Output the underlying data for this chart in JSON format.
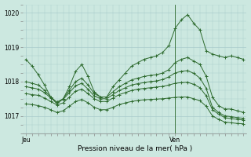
{
  "bg_color": "#cce8e0",
  "grid_color": "#aacccc",
  "line_color": "#2d6a2d",
  "ylabel": "Pression niveau de la mer( hPa )",
  "ylim": [
    1016.5,
    1020.25
  ],
  "yticks": [
    1017,
    1018,
    1019,
    1020
  ],
  "xtick_labels": [
    "Jeu",
    "Ven"
  ],
  "xtick_positions": [
    0,
    24
  ],
  "vline_x": 24,
  "n_points": 36,
  "series": [
    [
      1018.65,
      1018.45,
      1018.2,
      1017.9,
      1017.55,
      1017.35,
      1017.5,
      1017.85,
      1018.3,
      1018.5,
      1018.15,
      1017.7,
      1017.55,
      1017.55,
      1017.85,
      1018.05,
      1018.25,
      1018.45,
      1018.55,
      1018.65,
      1018.7,
      1018.75,
      1018.85,
      1019.05,
      1019.55,
      1019.8,
      1019.95,
      1019.7,
      1019.5,
      1018.9,
      1018.8,
      1018.75,
      1018.7,
      1018.75,
      1018.7,
      1018.65
    ],
    [
      1018.0,
      1017.95,
      1017.9,
      1017.75,
      1017.55,
      1017.4,
      1017.5,
      1017.75,
      1018.0,
      1018.1,
      1017.9,
      1017.65,
      1017.55,
      1017.55,
      1017.7,
      1017.85,
      1017.95,
      1018.05,
      1018.1,
      1018.15,
      1018.18,
      1018.2,
      1018.25,
      1018.35,
      1018.55,
      1018.65,
      1018.7,
      1018.6,
      1018.5,
      1018.15,
      1017.55,
      1017.3,
      1017.2,
      1017.2,
      1017.15,
      1017.1
    ],
    [
      1017.85,
      1017.82,
      1017.78,
      1017.68,
      1017.52,
      1017.4,
      1017.48,
      1017.68,
      1017.88,
      1017.95,
      1017.78,
      1017.58,
      1017.5,
      1017.5,
      1017.62,
      1017.74,
      1017.82,
      1017.9,
      1017.94,
      1017.97,
      1018.0,
      1018.02,
      1018.06,
      1018.14,
      1018.25,
      1018.3,
      1018.32,
      1018.24,
      1018.1,
      1017.8,
      1017.25,
      1017.1,
      1017.0,
      1016.98,
      1016.95,
      1016.93
    ],
    [
      1017.65,
      1017.62,
      1017.6,
      1017.52,
      1017.42,
      1017.32,
      1017.38,
      1017.55,
      1017.72,
      1017.78,
      1017.65,
      1017.5,
      1017.42,
      1017.42,
      1017.52,
      1017.62,
      1017.68,
      1017.74,
      1017.78,
      1017.8,
      1017.82,
      1017.84,
      1017.86,
      1017.9,
      1017.95,
      1017.97,
      1017.98,
      1017.92,
      1017.82,
      1017.58,
      1017.18,
      1017.05,
      1016.95,
      1016.92,
      1016.9,
      1016.88
    ],
    [
      1017.35,
      1017.33,
      1017.3,
      1017.25,
      1017.18,
      1017.1,
      1017.15,
      1017.28,
      1017.42,
      1017.48,
      1017.38,
      1017.25,
      1017.18,
      1017.18,
      1017.25,
      1017.33,
      1017.38,
      1017.42,
      1017.45,
      1017.47,
      1017.48,
      1017.49,
      1017.5,
      1017.52,
      1017.54,
      1017.55,
      1017.55,
      1017.5,
      1017.44,
      1017.28,
      1017.0,
      1016.9,
      1016.82,
      1016.8,
      1016.78,
      1016.77
    ]
  ]
}
